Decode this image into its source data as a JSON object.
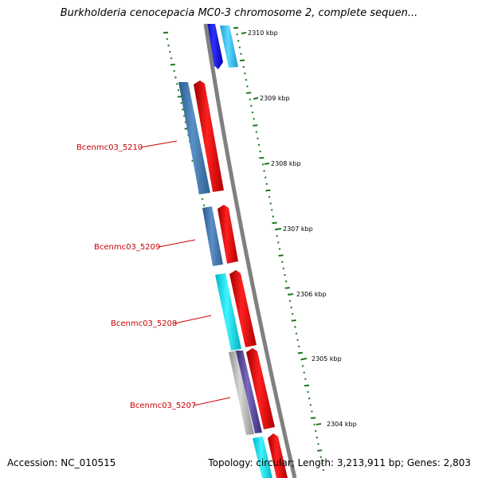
{
  "title": "Burkholderia cenocepacia MC0-3 chromosome 2, complete sequen...",
  "accession": "Accession: NC_010515",
  "topology": "Topology: circular; Length: 3,213,911 bp; Genes: 2,803",
  "colors": {
    "backbone": "#808080",
    "gene_label": "#cc0000",
    "tick": "#1a7a1a",
    "forward": "#ff0000",
    "steelblue": "#4a7fb5",
    "cyan": "#10e0f0",
    "lightblue": "#40c8f0",
    "blue": "#1010e0",
    "purple": "#5a4a9a"
  },
  "kbp_labels": [
    "2310 kbp",
    "2309 kbp",
    "2308 kbp",
    "2307 kbp",
    "2306 kbp",
    "2305 kbp",
    "2304 kbp"
  ],
  "gene_labels": [
    "Bcenmc03_5210",
    "Bcenmc03_5209",
    "Bcenmc03_5208",
    "Bcenmc03_5207"
  ]
}
